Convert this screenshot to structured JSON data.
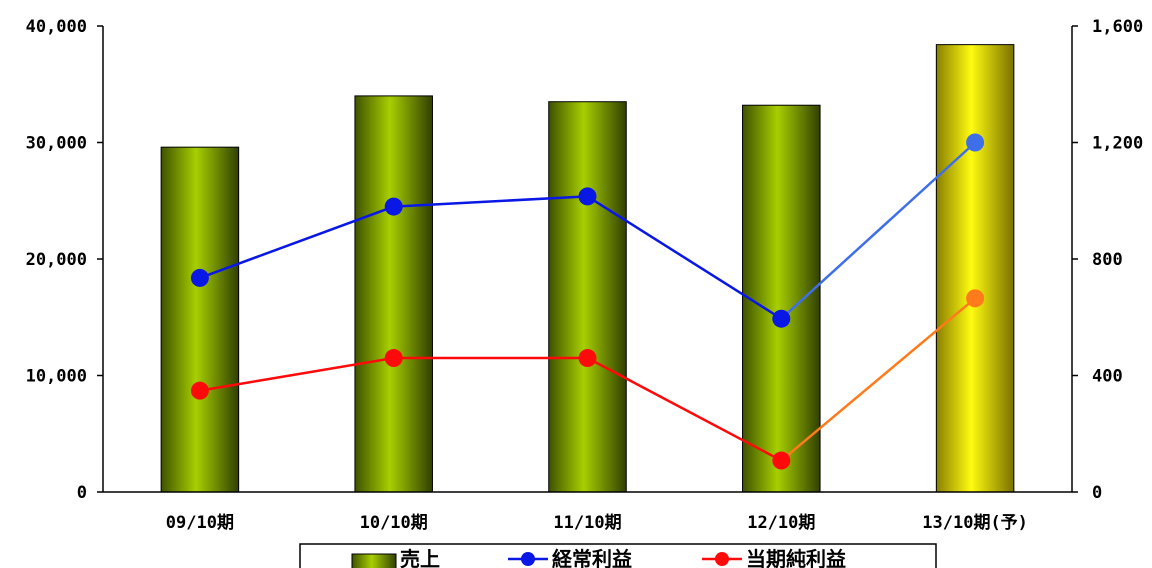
{
  "chart_data": {
    "type": "bar+line",
    "categories": [
      "09/10期",
      "10/10期",
      "11/10期",
      "12/10期",
      "13/10期(予)"
    ],
    "left_axis": {
      "ylim": [
        0,
        40000
      ],
      "ticks": [
        "0",
        "10,000",
        "20,000",
        "30,000",
        "40,000"
      ]
    },
    "right_axis": {
      "ylim": [
        0,
        1600
      ],
      "ticks": [
        "0",
        "400",
        "800",
        "1,200",
        "1,600"
      ]
    },
    "series": [
      {
        "name": "売上",
        "type": "bar",
        "axis": "left",
        "values": [
          29600,
          34000,
          33500,
          33200,
          38400
        ],
        "colors": [
          "#8fb800",
          "#8fb800",
          "#8fb800",
          "#8fb800",
          "#f5f000"
        ]
      },
      {
        "name": "経常利益",
        "type": "line",
        "axis": "right",
        "values": [
          735,
          980,
          1015,
          595,
          1200
        ],
        "color": "#0a18e6",
        "forecast_color": "#3f6fe8"
      },
      {
        "name": "当期純利益",
        "type": "line",
        "axis": "right",
        "values": [
          348,
          460,
          460,
          108,
          665
        ],
        "color": "#ff0a0a",
        "forecast_color": "#ff7a1a"
      }
    ],
    "grid": false,
    "legend_position": "bottom-center"
  }
}
